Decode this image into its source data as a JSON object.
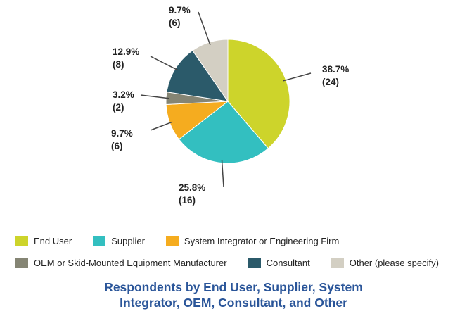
{
  "chart_data": {
    "type": "pie",
    "title_lines": [
      "Respondents by End User, Supplier, System",
      "Integrator, OEM, Consultant, and Other"
    ],
    "slices": [
      {
        "name": "End User",
        "percent_label": "38.7%",
        "count_label": "(24)",
        "value": 24,
        "color": "#cdd42b"
      },
      {
        "name": "Supplier",
        "percent_label": "25.8%",
        "count_label": "(16)",
        "value": 16,
        "color": "#33bfc0"
      },
      {
        "name": "System Integrator or Engineering Firm",
        "percent_label": "9.7%",
        "count_label": "(6)",
        "value": 6,
        "color": "#f5ac1f"
      },
      {
        "name": "OEM or Skid-Mounted Equipment Manufacturer",
        "percent_label": "3.2%",
        "count_label": "(2)",
        "value": 2,
        "color": "#858574"
      },
      {
        "name": "Consultant",
        "percent_label": "12.9%",
        "count_label": "(8)",
        "value": 8,
        "color": "#2b5a6a"
      },
      {
        "name": "Other (please specify)",
        "percent_label": "9.7%",
        "count_label": "(6)",
        "value": 6,
        "color": "#d3cfc3"
      }
    ],
    "legend_placement": "bottom",
    "start_angle": "top, clockwise"
  }
}
